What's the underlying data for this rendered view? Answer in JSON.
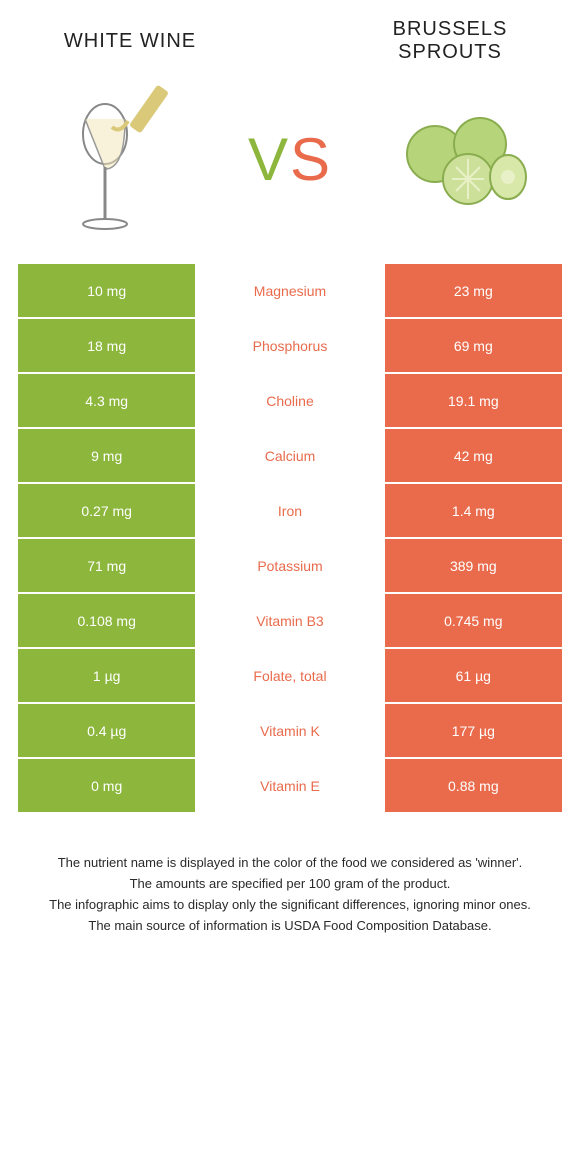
{
  "colors": {
    "green": "#8cb63c",
    "orange": "#e96b4c",
    "vs_v": "#8cb63c",
    "vs_s": "#e96b4c"
  },
  "left_title": "WHITE WINE",
  "right_title": "BRUSSELS SPROUTS",
  "vs_text": {
    "v": "V",
    "s": "S"
  },
  "rows": [
    {
      "left": "10 mg",
      "mid": "Magnesium",
      "right": "23 mg",
      "winner": "right"
    },
    {
      "left": "18 mg",
      "mid": "Phosphorus",
      "right": "69 mg",
      "winner": "right"
    },
    {
      "left": "4.3 mg",
      "mid": "Choline",
      "right": "19.1 mg",
      "winner": "right"
    },
    {
      "left": "9 mg",
      "mid": "Calcium",
      "right": "42 mg",
      "winner": "right"
    },
    {
      "left": "0.27 mg",
      "mid": "Iron",
      "right": "1.4 mg",
      "winner": "right"
    },
    {
      "left": "71 mg",
      "mid": "Potassium",
      "right": "389 mg",
      "winner": "right"
    },
    {
      "left": "0.108 mg",
      "mid": "Vitamin B3",
      "right": "0.745 mg",
      "winner": "right"
    },
    {
      "left": "1 µg",
      "mid": "Folate, total",
      "right": "61 µg",
      "winner": "right"
    },
    {
      "left": "0.4 µg",
      "mid": "Vitamin K",
      "right": "177 µg",
      "winner": "right"
    },
    {
      "left": "0 mg",
      "mid": "Vitamin E",
      "right": "0.88 mg",
      "winner": "right"
    }
  ],
  "footer": [
    "The nutrient name is displayed in the color of the food we considered as 'winner'.",
    "The amounts are specified per 100 gram of the product.",
    "The infographic aims to display only the significant differences, ignoring minor ones.",
    "The main source of information is USDA Food Composition Database."
  ]
}
